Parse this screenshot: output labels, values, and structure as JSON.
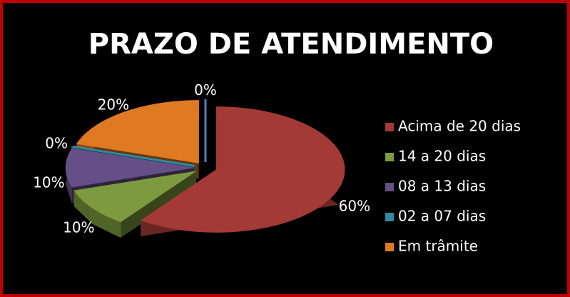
{
  "chart_data": {
    "type": "pie",
    "title": "PRAZO DE ATENDIMENTO",
    "categories": [
      "Acima de 20 dias",
      "14 a 20 dias",
      "08 a 13 dias",
      "02 a 07 dias",
      "Em trâmite",
      null
    ],
    "values": [
      60,
      10,
      10,
      0,
      20,
      0
    ],
    "value_labels": [
      "60%",
      "10%",
      "10%",
      "0%",
      "20%",
      "0%"
    ],
    "colors": [
      "#a33a36",
      "#7d9a3e",
      "#664f86",
      "#2f8aa0",
      "#e07a22",
      "#4f81bd"
    ],
    "legend": "right"
  }
}
